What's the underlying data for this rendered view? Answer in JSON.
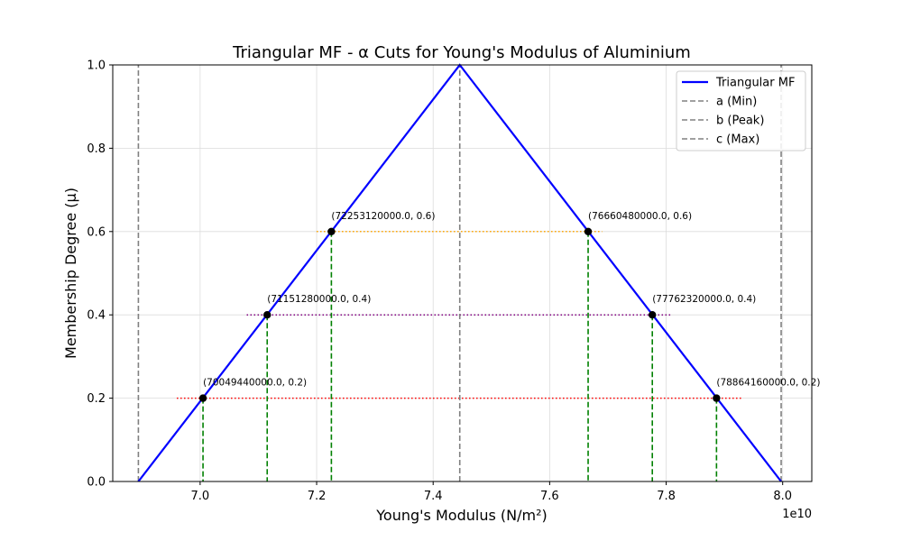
{
  "chart_data": {
    "type": "line",
    "title": "Triangular MF - α Cuts for Young's Modulus of Aluminium",
    "xlabel": "Young's Modulus (N/m²)",
    "ylabel": "Membership Degree (μ)",
    "x_offset_label": "1e10",
    "xlim": [
      68500000000,
      80500000000
    ],
    "ylim": [
      0,
      1
    ],
    "x_ticks": [
      70000000000,
      72000000000,
      74000000000,
      76000000000,
      78000000000,
      80000000000
    ],
    "x_tick_labels": [
      "7.0",
      "7.2",
      "7.4",
      "7.6",
      "7.8",
      "8.0"
    ],
    "y_ticks": [
      0,
      0.2,
      0.4,
      0.6,
      0.8,
      1.0
    ],
    "y_tick_labels": [
      "0.0",
      "0.2",
      "0.4",
      "0.6",
      "0.8",
      "1.0"
    ],
    "grid": true,
    "legend_position": "top-right",
    "triangle": {
      "a": 68940000000,
      "b": 74457000000,
      "c": 79974000000
    },
    "series": [
      {
        "name": "Triangular MF",
        "color": "#0000ff",
        "style": "solid",
        "x": [
          68940000000,
          74457000000,
          79974000000
        ],
        "y": [
          0,
          1,
          0
        ]
      },
      {
        "name": "a (Min)",
        "color": "#808080",
        "style": "dashed",
        "x": [
          68940000000,
          68940000000
        ],
        "y": [
          0,
          1
        ]
      },
      {
        "name": "b (Peak)",
        "color": "#808080",
        "style": "dashed",
        "x": [
          74457000000,
          74457000000
        ],
        "y": [
          0,
          1
        ]
      },
      {
        "name": "c (Max)",
        "color": "#808080",
        "style": "dashed",
        "x": [
          79974000000,
          79974000000
        ],
        "y": [
          0,
          1
        ]
      }
    ],
    "alpha_cuts": [
      {
        "alpha": 0.2,
        "left": 70049440000,
        "right": 78864160000,
        "color": "#ff0000",
        "line_from": 69600000000,
        "line_to": 79300000000,
        "left_label": "(70049440000.0, 0.2)",
        "right_label": "(78864160000.0, 0.2)"
      },
      {
        "alpha": 0.4,
        "left": 71151280000,
        "right": 77762320000,
        "color": "#800080",
        "line_from": 70800000000,
        "line_to": 78100000000,
        "left_label": "(71151280000.0, 0.4)",
        "right_label": "(77762320000.0, 0.4)"
      },
      {
        "alpha": 0.6,
        "left": 72253120000,
        "right": 76660480000,
        "color": "#ffa500",
        "line_from": 72000000000,
        "line_to": 76900000000,
        "left_label": "(72253120000.0, 0.6)",
        "right_label": "(76660480000.0, 0.6)"
      }
    ],
    "drop_line_color": "#008000",
    "point_color": "#000000"
  }
}
